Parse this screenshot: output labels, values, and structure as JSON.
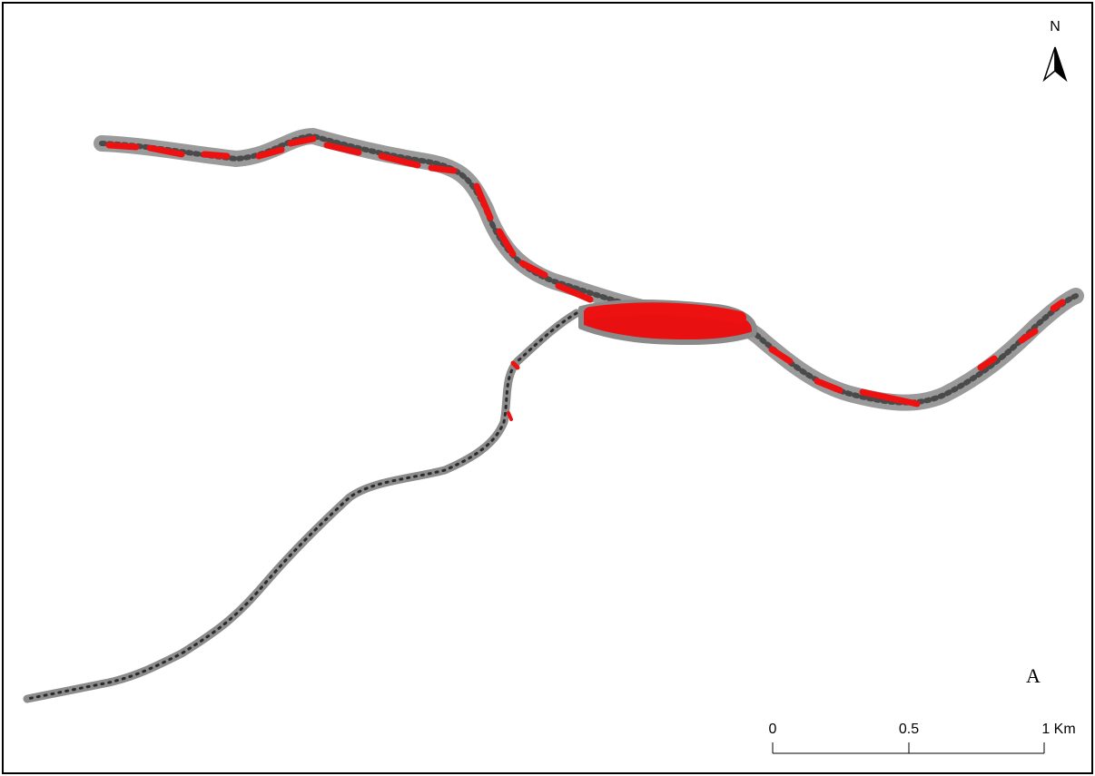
{
  "map": {
    "north_label": "N",
    "panel_label": "A",
    "scale_bar": {
      "labels": [
        "0",
        "0.5",
        "1 Km"
      ]
    }
  }
}
